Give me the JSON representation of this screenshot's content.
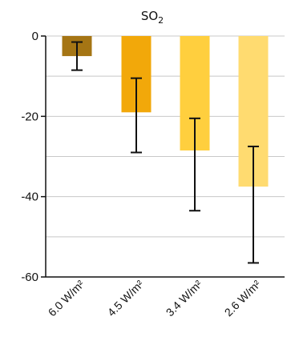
{
  "chart_data": {
    "type": "bar",
    "title": "SO",
    "title_subscript": "2",
    "xlabel": "",
    "ylabel": "",
    "ylim": [
      -60,
      0
    ],
    "yticks": [
      0,
      -20,
      -40,
      -60
    ],
    "yticks_labels": [
      "0",
      "-20",
      "-40",
      "-60"
    ],
    "grid": true,
    "categories": [
      "6.0 W/m²",
      "4.5 W/m²",
      "3.4 W/m²",
      "2.6 W/m²"
    ],
    "values": [
      -5,
      -19,
      -28.5,
      -37.5
    ],
    "error_low": [
      -8.5,
      -29,
      -43.5,
      -56.5
    ],
    "error_high": [
      -1.5,
      -10.5,
      -20.5,
      -27.5
    ],
    "bar_colors": [
      "#A57514",
      "#F2A80A",
      "#FFCF3E",
      "#FFDB70"
    ]
  }
}
